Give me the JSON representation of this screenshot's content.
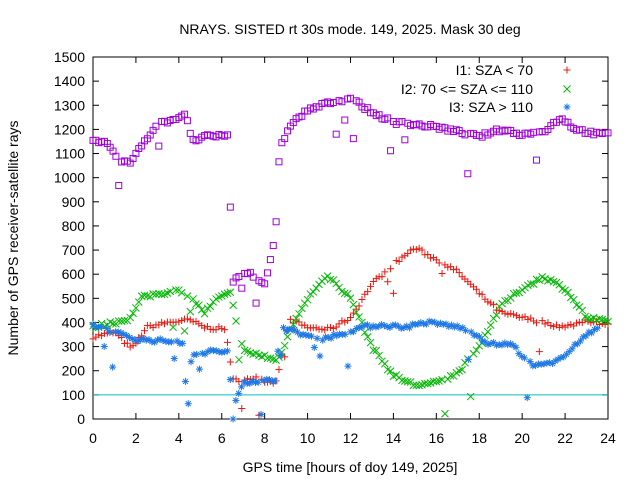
{
  "chart_data": {
    "type": "scatter",
    "title": "NRAYS. SISTED rt 30s mode. 149, 2025. Mask 30 deg",
    "xlabel": "GPS time [hours of doy 149, 2025]",
    "ylabel": "Number of GPS receiver-satellite rays",
    "xlim": [
      0,
      24
    ],
    "ylim": [
      0,
      1500
    ],
    "xticks": [
      "0",
      "2",
      "4",
      "6",
      "8",
      "10",
      "12",
      "14",
      "16",
      "18",
      "20",
      "22",
      "24"
    ],
    "yticks": [
      "0",
      "100",
      "200",
      "300",
      "400",
      "500",
      "600",
      "700",
      "800",
      "900",
      "1000",
      "1100",
      "1200",
      "1300",
      "1400",
      "1500"
    ],
    "reference_line": {
      "y": 100,
      "color": "#00c0c0"
    },
    "legend_position": "top-right",
    "series": [
      {
        "name": "I1: SZA < 70",
        "marker": "+",
        "color": "#e8180f",
        "x": [
          0,
          1,
          1.8,
          2.5,
          3.5,
          4.5,
          5.2,
          5.8,
          6.2,
          6.5,
          7.5,
          8.5,
          9.2,
          10,
          11,
          12,
          13,
          14,
          15,
          16,
          17,
          18,
          19,
          20,
          21,
          22,
          23,
          24
        ],
        "y": [
          340,
          360,
          290,
          380,
          400,
          410,
          380,
          375,
          370,
          160,
          170,
          150,
          410,
          380,
          370,
          420,
          560,
          640,
          710,
          660,
          610,
          520,
          440,
          420,
          400,
          380,
          410,
          390
        ]
      },
      {
        "name": "I2: 70 <= SZA <= 110",
        "marker": "x",
        "color": "#00b800",
        "x": [
          0,
          1,
          1.8,
          2.2,
          3,
          4,
          4.5,
          5.2,
          5.8,
          6.4,
          7,
          8,
          8.6,
          9.5,
          10.5,
          11,
          12,
          13,
          14,
          15,
          16,
          17,
          18,
          19,
          20,
          21,
          22,
          23,
          24
        ],
        "y": [
          380,
          400,
          420,
          500,
          520,
          530,
          510,
          440,
          500,
          520,
          280,
          260,
          240,
          430,
          560,
          590,
          500,
          300,
          180,
          140,
          150,
          190,
          300,
          470,
          540,
          590,
          540,
          420,
          400
        ]
      },
      {
        "name": "I3: SZA > 110",
        "marker": "*",
        "color": "#1e78e6",
        "x": [
          0,
          1,
          2,
          3,
          4.2,
          4.4,
          4.6,
          5,
          5.5,
          6.3,
          6.5,
          7,
          8.5,
          8.7,
          9.5,
          10.5,
          11.5,
          12.5,
          13.5,
          14.5,
          15.5,
          16.5,
          17.5,
          18.5,
          19.5,
          20.5,
          21.5,
          22.5,
          23.5
        ],
        "y": [
          390,
          360,
          330,
          325,
          320,
          10,
          270,
          270,
          280,
          280,
          30,
          155,
          160,
          380,
          360,
          330,
          350,
          380,
          390,
          380,
          400,
          390,
          370,
          310,
          310,
          220,
          230,
          310,
          380
        ]
      },
      {
        "name": "NRAYS",
        "marker": "square",
        "color": "#a000d8",
        "x": [
          0,
          0.7,
          1.2,
          1.7,
          2.2,
          3,
          4,
          4.3,
          4.6,
          5.2,
          5.8,
          6.3,
          6.5,
          7.2,
          8,
          8.5,
          8.7,
          9.2,
          10,
          11,
          12,
          13,
          14,
          15,
          16,
          17,
          18,
          19,
          20,
          21,
          21.8,
          22.5,
          23.5,
          24
        ],
        "y": [
          1160,
          1140,
          1070,
          1060,
          1130,
          1220,
          1250,
          1270,
          1150,
          1170,
          1170,
          1180,
          570,
          610,
          560,
          750,
          1120,
          1220,
          1280,
          1310,
          1330,
          1270,
          1230,
          1220,
          1210,
          1190,
          1170,
          1200,
          1180,
          1190,
          1250,
          1200,
          1180,
          1180
        ]
      }
    ]
  }
}
